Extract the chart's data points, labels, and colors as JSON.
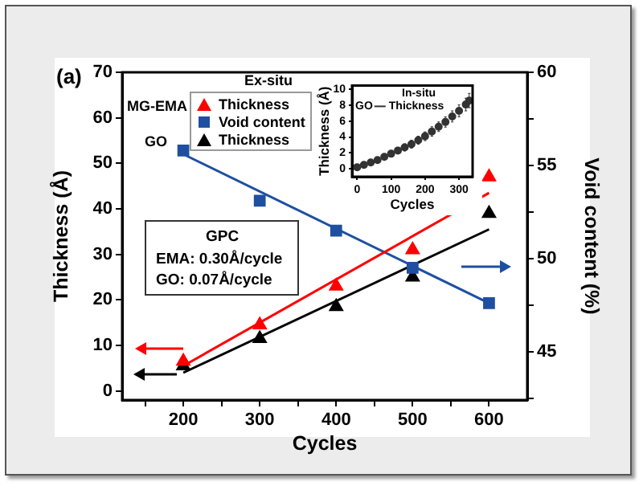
{
  "chart_data": [
    {
      "type": "scatter",
      "xlabel": "Cycles",
      "ylabel": "Thickness (Å)",
      "y2label": "Void content (%)",
      "annotations": [
        "(a)",
        "Ex-situ",
        "MG-EMA",
        "GO",
        "GPC",
        "EMA: 0.30Å/cycle",
        "GO: 0.07Å/cycle"
      ],
      "xlim": [
        120,
        650
      ],
      "xticks": [
        {
          "value": 150,
          "label": null
        },
        200,
        {
          "value": 250,
          "label": null
        },
        300,
        {
          "value": 350,
          "label": null
        },
        400,
        {
          "value": 450,
          "label": null
        },
        500,
        {
          "value": 550,
          "label": null
        },
        600
      ],
      "ylim": [
        -2,
        70
      ],
      "yticks": [
        0,
        10,
        20,
        30,
        40,
        50,
        60,
        70
      ],
      "y2lim": [
        42.4,
        60
      ],
      "y2ticks": [
        {
          "value": 42.5,
          "label": null
        },
        45,
        {
          "value": 47.5,
          "label": null
        },
        50,
        {
          "value": 52.5,
          "label": null
        },
        55,
        {
          "value": 57.5,
          "label": null
        },
        60
      ],
      "legend": "top left",
      "grid": false,
      "series": [
        {
          "name": "Thickness",
          "type": "scatter",
          "marker": "triangle",
          "color": "#ff0000",
          "x": [
            200,
            300,
            400,
            500,
            600
          ],
          "values": [
            6.5,
            14.5,
            23,
            31,
            47
          ]
        },
        {
          "name": "Void content",
          "type": "scatter",
          "marker": "square",
          "color": "#1f4fa0",
          "axis": "y2",
          "x": [
            200,
            300,
            400,
            500,
            600
          ],
          "values": [
            55.8,
            53.1,
            51.5,
            49.5,
            47.6
          ]
        },
        {
          "name": "Thickness",
          "type": "scatter",
          "marker": "triangle",
          "color": "#000000",
          "x": [
            200,
            300,
            400,
            500,
            600
          ],
          "values": [
            5.5,
            11.5,
            18.5,
            25,
            39
          ]
        },
        {
          "type": "line",
          "marker": "none",
          "color": "#ff0000",
          "x": [
            200,
            600
          ],
          "values": [
            5.5,
            43.5
          ]
        },
        {
          "type": "line",
          "marker": "none",
          "color": "#1f4fa0",
          "axis": "y2",
          "x": [
            200,
            600
          ],
          "values": [
            55.6,
            47.6
          ]
        },
        {
          "type": "line",
          "marker": "none",
          "color": "#000000",
          "x": [
            200,
            600
          ],
          "values": [
            4,
            35.5
          ]
        }
      ]
    },
    {
      "type": "scatter",
      "xlabel": "Cycles",
      "ylabel": "Thickness (Å)",
      "annotations": [
        "In-situ",
        "GO"
      ],
      "xlim": [
        -15,
        340
      ],
      "xticks": [
        0,
        100,
        200,
        300
      ],
      "ylim": [
        -1,
        10.5
      ],
      "yticks": [
        0,
        2,
        4,
        6,
        8,
        10
      ],
      "grid": false,
      "legend": "top left",
      "series": [
        {
          "name": "Thickness",
          "type": "scatter",
          "marker": "circle",
          "color": "#333333",
          "x": [
            0,
            20,
            40,
            60,
            80,
            100,
            120,
            140,
            160,
            180,
            200,
            220,
            240,
            260,
            280,
            300,
            320,
            330
          ],
          "values": [
            0.2,
            0.5,
            0.8,
            1.1,
            1.5,
            1.9,
            2.3,
            2.7,
            3.1,
            3.6,
            4.1,
            4.7,
            5.3,
            5.9,
            6.6,
            7.3,
            8.1,
            8.6
          ],
          "errors": [
            0.3,
            0.3,
            0.3,
            0.3,
            0.35,
            0.4,
            0.4,
            0.45,
            0.5,
            0.5,
            0.55,
            0.6,
            0.6,
            0.65,
            0.7,
            0.75,
            0.8,
            0.9
          ]
        }
      ]
    }
  ]
}
